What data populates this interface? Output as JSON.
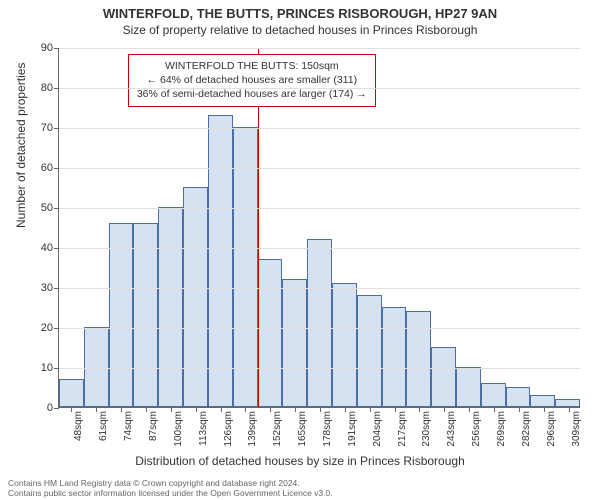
{
  "titles": {
    "line1": "WINTERFOLD, THE BUTTS, PRINCES RISBOROUGH, HP27 9AN",
    "line2": "Size of property relative to detached houses in Princes Risborough"
  },
  "chart": {
    "type": "histogram",
    "ylim": [
      0,
      90
    ],
    "ytick_step": 10,
    "ylabel": "Number of detached properties",
    "xlabel": "Distribution of detached houses by size in Princes Risborough",
    "bar_fill": "#d6e1f2",
    "bar_stroke": "#4a6fa5",
    "grid_color": "#e0e0e0",
    "background": "#ffffff",
    "ref_line_color": "#cc0000",
    "ref_line_x_index": 8,
    "categories": [
      "48sqm",
      "61sqm",
      "74sqm",
      "87sqm",
      "100sqm",
      "113sqm",
      "126sqm",
      "139sqm",
      "152sqm",
      "165sqm",
      "178sqm",
      "191sqm",
      "204sqm",
      "217sqm",
      "230sqm",
      "243sqm",
      "256sqm",
      "269sqm",
      "282sqm",
      "296sqm",
      "309sqm"
    ],
    "values": [
      7,
      20,
      46,
      46,
      50,
      55,
      73,
      70,
      37,
      32,
      42,
      31,
      28,
      25,
      24,
      15,
      10,
      6,
      5,
      3,
      2
    ],
    "annotation": {
      "line1": "WINTERFOLD THE BUTTS: 150sqm",
      "line2": "← 64% of detached houses are smaller (311)",
      "line3": "36% of semi-detached houses are larger (174) →"
    }
  },
  "footer": {
    "line1": "Contains HM Land Registry data © Crown copyright and database right 2024.",
    "line2": "Contains public sector information licensed under the Open Government Licence v3.0."
  }
}
